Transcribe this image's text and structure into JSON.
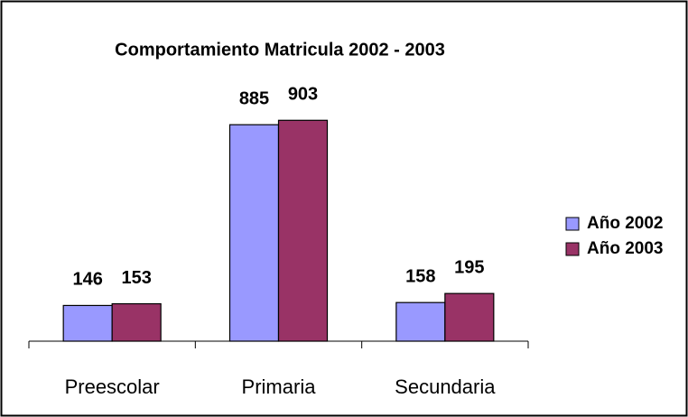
{
  "chart_data": {
    "type": "bar",
    "title": "Comportamiento Matricula 2002 - 2003",
    "categories": [
      "Preescolar",
      "Primaria",
      "Secundaria"
    ],
    "series": [
      {
        "name": "Año 2002",
        "color": "#9999ff",
        "values": [
          146,
          885,
          158
        ]
      },
      {
        "name": "Año 2003",
        "color": "#993366",
        "values": [
          153,
          903,
          195
        ]
      }
    ],
    "ylim": [
      0,
      1000
    ],
    "legend": "right"
  }
}
